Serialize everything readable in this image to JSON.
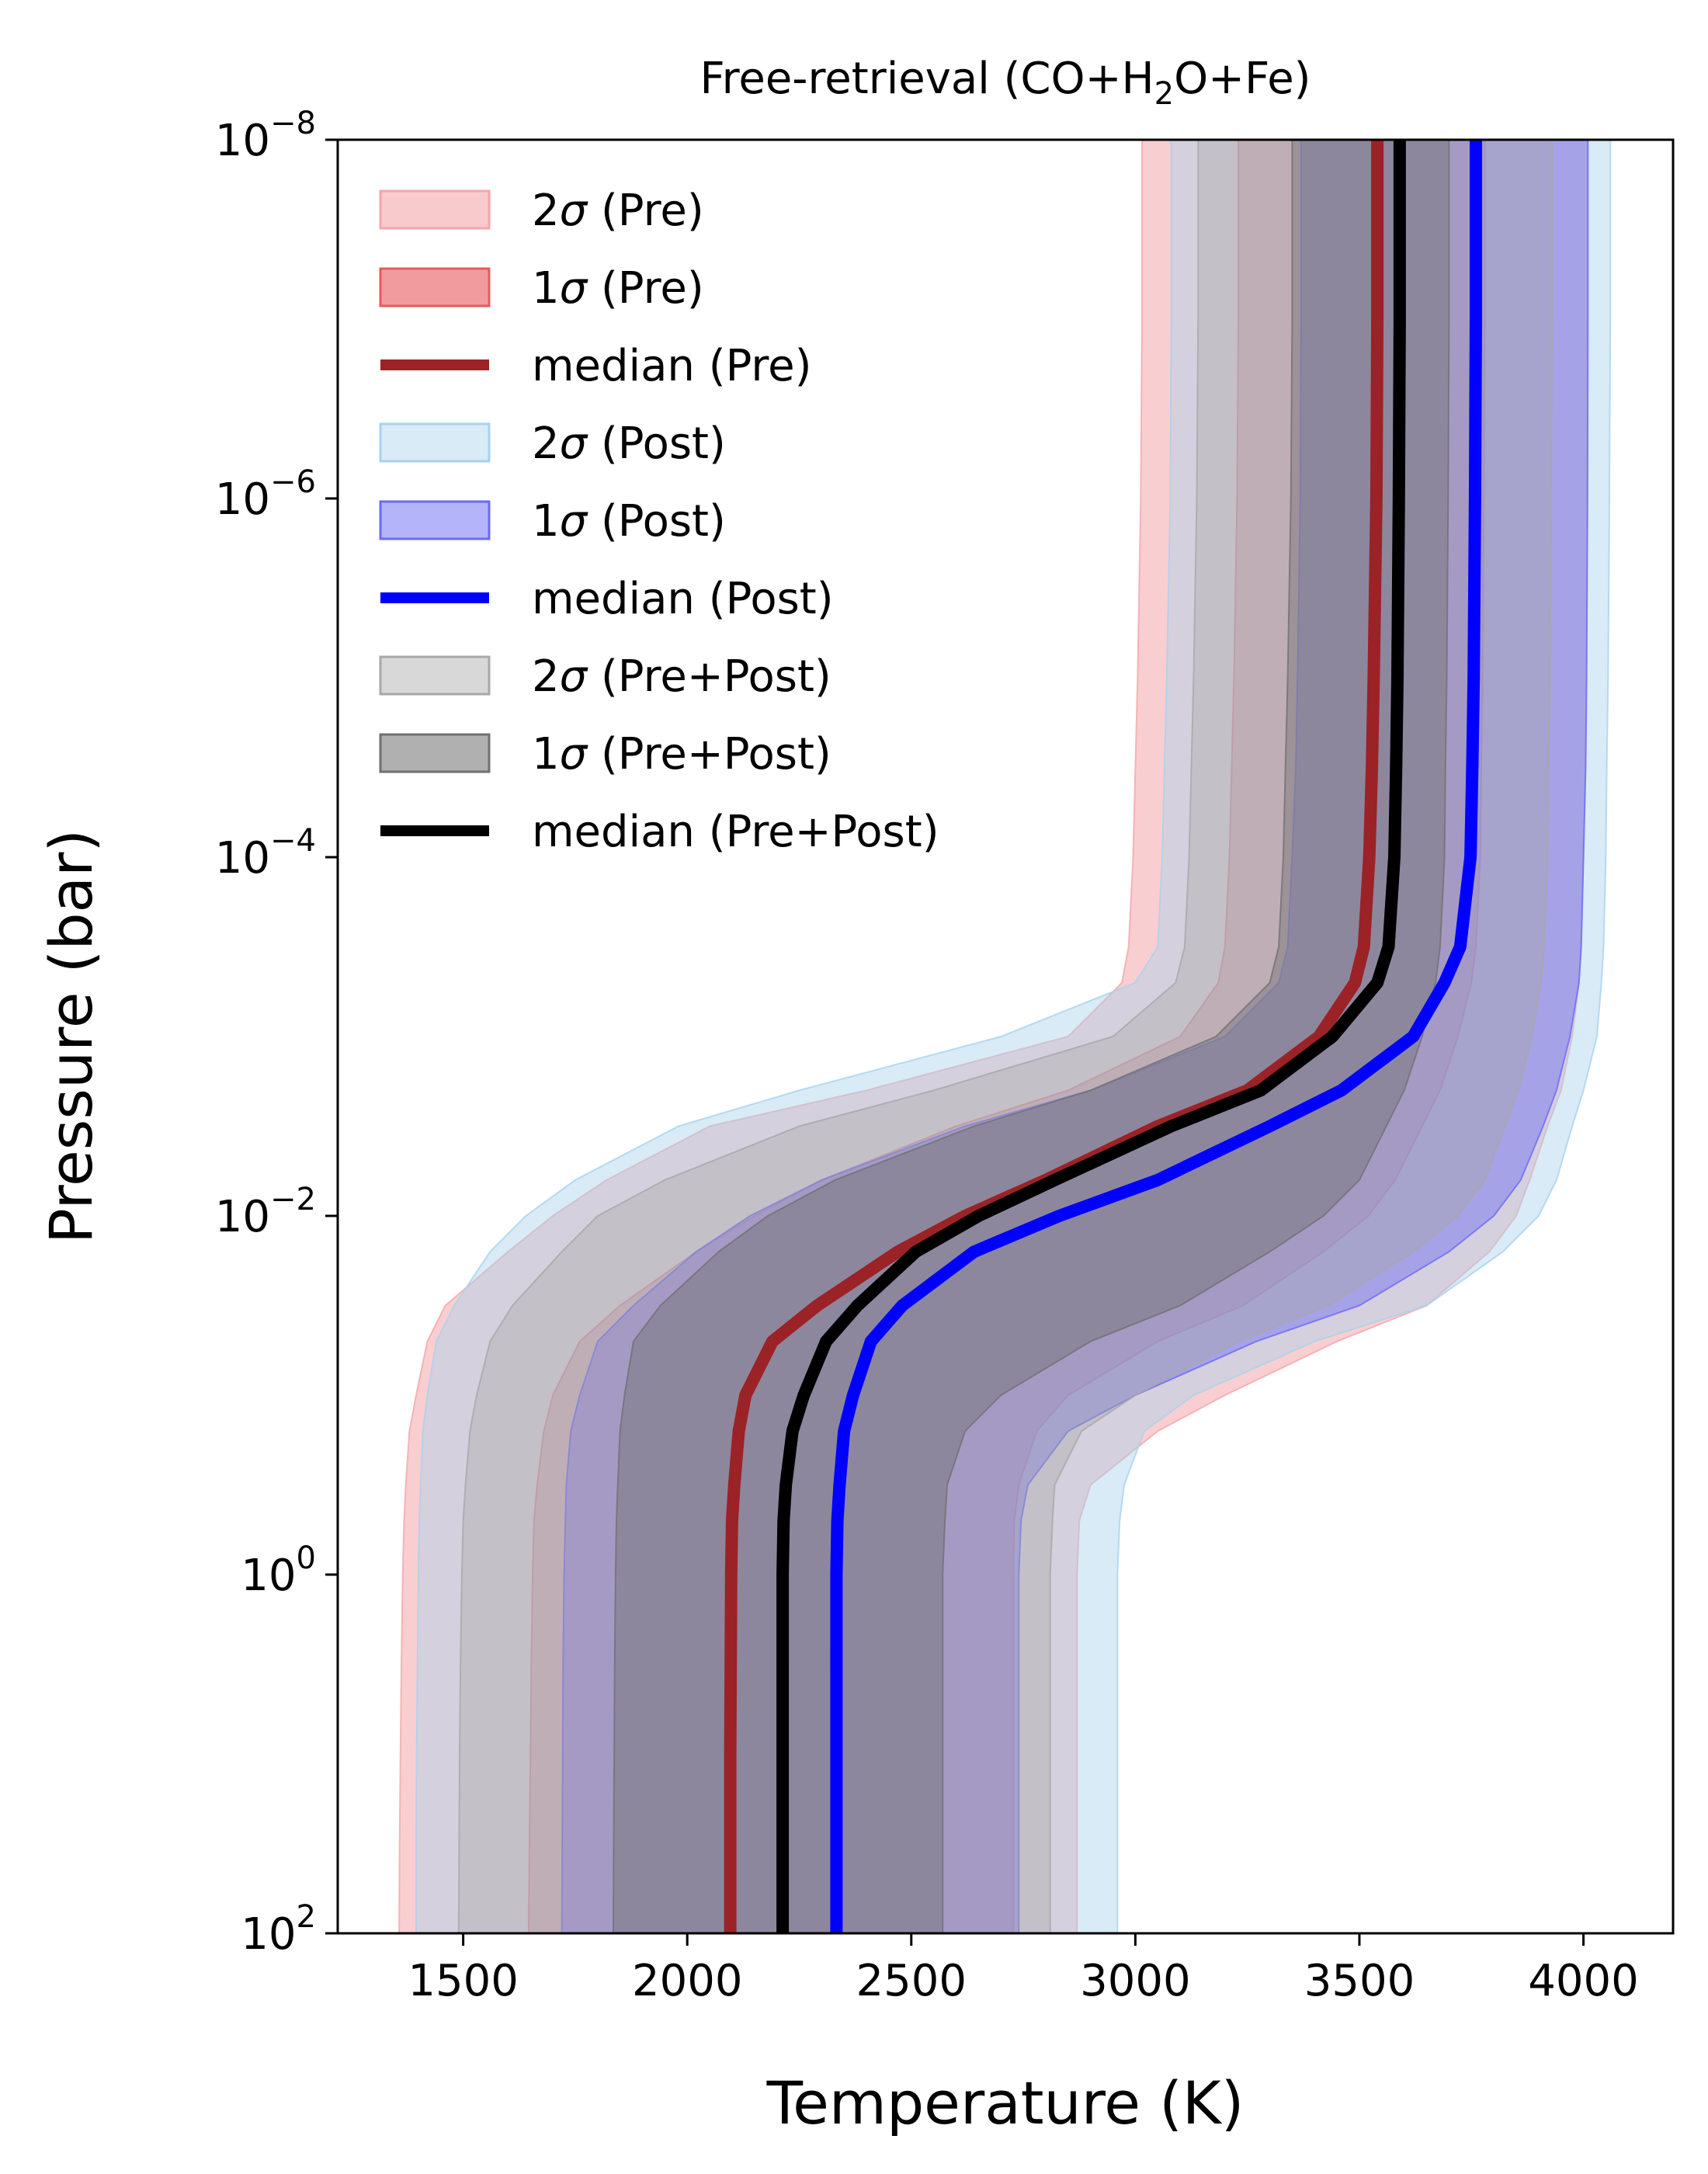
{
  "chart_data": {
    "type": "area",
    "title_parts": [
      "Free-retrieval (CO+H",
      "2",
      "O+Fe)"
    ],
    "xlabel": "Temperature (K)",
    "ylabel": "Pressure (bar)",
    "xlim": [
      1220,
      4200
    ],
    "ylim_log10": [
      -8,
      2
    ],
    "y_inverted": true,
    "y_scale": "log",
    "x_ticks": [
      1500,
      2000,
      2500,
      3000,
      3500,
      4000
    ],
    "x_tick_labels": [
      "1500",
      "2000",
      "2500",
      "3000",
      "3500",
      "4000"
    ],
    "y_ticks_log10": [
      -8,
      -6,
      -4,
      -2,
      0,
      2
    ],
    "y_tick_bases": [
      "10",
      "10",
      "10",
      "10",
      "10",
      "10"
    ],
    "y_tick_exponents": [
      "−8",
      "−6",
      "−4",
      "−2",
      "0",
      "2"
    ],
    "legend_location": "upper-left",
    "legend": [
      {
        "label_prefix": "2",
        "label_suffix": " (Pre)",
        "kind": "band",
        "color": "#f4a6aa",
        "opacity": 0.6
      },
      {
        "label_prefix": "1",
        "label_suffix": " (Pre)",
        "kind": "band",
        "color": "#e8595f",
        "opacity": 0.6
      },
      {
        "label_prefix": "",
        "label_suffix": "median (Pre)",
        "kind": "line",
        "color": "#9b2226"
      },
      {
        "label_prefix": "2",
        "label_suffix": " (Post)",
        "kind": "band",
        "color": "#a8d2ee",
        "opacity": 0.45
      },
      {
        "label_prefix": "1",
        "label_suffix": " (Post)",
        "kind": "band",
        "color": "#6a6af5",
        "opacity": 0.5
      },
      {
        "label_prefix": "",
        "label_suffix": "median (Post)",
        "kind": "line",
        "color": "#0000ff"
      },
      {
        "label_prefix": "2",
        "label_suffix": " (Pre+Post)",
        "kind": "band",
        "color": "#a8a8a8",
        "opacity": 0.45
      },
      {
        "label_prefix": "1",
        "label_suffix": " (Pre+Post)",
        "kind": "band",
        "color": "#707070",
        "opacity": 0.55
      },
      {
        "label_prefix": "",
        "label_suffix": "median (Pre+Post)",
        "kind": "line",
        "color": "#000000"
      }
    ],
    "sigma_symbol": "σ",
    "logP": [
      -8,
      -7,
      -6,
      -5,
      -4.5,
      -4,
      -3.5,
      -3.3,
      -3,
      -2.7,
      -2.5,
      -2.2,
      -2,
      -1.8,
      -1.5,
      -1.3,
      -1,
      -0.8,
      -0.5,
      -0.3,
      0,
      0.5,
      1,
      1.5,
      2
    ],
    "series": [
      {
        "name": "2σ (Pre)",
        "kind": "band",
        "color": "#f4a6aa",
        "opacity": 0.55,
        "low": [
          3015,
          3015,
          3012,
          3005,
          3000,
          2995,
          2985,
          2970,
          2850,
          2400,
          2050,
          1820,
          1700,
          1600,
          1460,
          1420,
          1395,
          1380,
          1372,
          1368,
          1365,
          1362,
          1360,
          1358,
          1357
        ],
        "high": [
          4010,
          4010,
          4009,
          4007,
          4005,
          4000,
          3995,
          3990,
          3975,
          3950,
          3920,
          3880,
          3850,
          3790,
          3650,
          3450,
          3200,
          3050,
          2900,
          2875,
          2870,
          2870,
          2870,
          2870,
          2870
        ]
      },
      {
        "name": "1σ (Pre)",
        "kind": "band",
        "color": "#e8595f",
        "opacity": 0.45,
        "low": [
          3230,
          3230,
          3227,
          3220,
          3215,
          3210,
          3200,
          3185,
          3100,
          2850,
          2600,
          2300,
          2150,
          2020,
          1850,
          1760,
          1700,
          1680,
          1665,
          1658,
          1655,
          1652,
          1650,
          1648,
          1646
        ],
        "high": [
          3780,
          3780,
          3778,
          3775,
          3772,
          3770,
          3760,
          3750,
          3720,
          3680,
          3640,
          3580,
          3520,
          3420,
          3240,
          3050,
          2850,
          2780,
          2740,
          2730,
          2728,
          2728,
          2728,
          2728,
          2728
        ]
      },
      {
        "name": "2σ (Post)",
        "kind": "band",
        "color": "#a8d2ee",
        "opacity": 0.45,
        "low": [
          3080,
          3080,
          3078,
          3070,
          3065,
          3060,
          3050,
          3000,
          2700,
          2250,
          1980,
          1750,
          1640,
          1560,
          1480,
          1440,
          1420,
          1410,
          1405,
          1402,
          1400,
          1398,
          1396,
          1395,
          1395
        ],
        "high": [
          4060,
          4060,
          4058,
          4055,
          4052,
          4050,
          4045,
          4040,
          4030,
          4000,
          3975,
          3940,
          3900,
          3820,
          3650,
          3400,
          3130,
          3020,
          2975,
          2965,
          2960,
          2960,
          2960,
          2960,
          2960
        ]
      },
      {
        "name": "1σ (Post)",
        "kind": "band",
        "color": "#6a6af5",
        "opacity": 0.45,
        "low": [
          3370,
          3370,
          3368,
          3362,
          3358,
          3350,
          3340,
          3320,
          3200,
          2900,
          2620,
          2300,
          2140,
          2020,
          1880,
          1800,
          1760,
          1740,
          1730,
          1728,
          1725,
          1723,
          1722,
          1721,
          1720
        ],
        "high": [
          4010,
          4010,
          4009,
          4007,
          4005,
          4000,
          3995,
          3990,
          3970,
          3940,
          3910,
          3860,
          3800,
          3700,
          3500,
          3270,
          3000,
          2850,
          2760,
          2745,
          2740,
          2740,
          2740,
          2740,
          2740
        ]
      },
      {
        "name": "2σ (Pre+Post)",
        "kind": "band",
        "color": "#a8a8a8",
        "opacity": 0.4,
        "low": [
          3140,
          3140,
          3137,
          3130,
          3125,
          3120,
          3110,
          3090,
          2950,
          2550,
          2250,
          1950,
          1800,
          1720,
          1610,
          1560,
          1530,
          1515,
          1505,
          1500,
          1497,
          1494,
          1492,
          1491,
          1490
        ],
        "high": [
          3930,
          3930,
          3928,
          3925,
          3922,
          3920,
          3912,
          3905,
          3885,
          3855,
          3825,
          3780,
          3720,
          3620,
          3430,
          3230,
          3000,
          2880,
          2820,
          2815,
          2810,
          2810,
          2810,
          2810,
          2810
        ]
      },
      {
        "name": "1σ (Pre+Post)",
        "kind": "band",
        "color": "#707070",
        "opacity": 0.45,
        "low": [
          3350,
          3350,
          3347,
          3340,
          3335,
          3330,
          3320,
          3300,
          3180,
          2900,
          2640,
          2330,
          2180,
          2070,
          1940,
          1880,
          1860,
          1850,
          1845,
          1842,
          1840,
          1838,
          1837,
          1836,
          1835
        ],
        "high": [
          3700,
          3700,
          3698,
          3695,
          3692,
          3690,
          3680,
          3670,
          3640,
          3600,
          3560,
          3500,
          3420,
          3300,
          3100,
          2900,
          2700,
          2620,
          2580,
          2575,
          2570,
          2570,
          2570,
          2570,
          2570
        ]
      },
      {
        "name": "median (Pre)",
        "kind": "line",
        "color": "#9b2226",
        "width": 16,
        "values": [
          3540,
          3540,
          3538,
          3532,
          3528,
          3522,
          3510,
          3490,
          3410,
          3250,
          3050,
          2800,
          2620,
          2470,
          2290,
          2190,
          2130,
          2115,
          2105,
          2100,
          2098,
          2097,
          2096,
          2096,
          2096
        ]
      },
      {
        "name": "median (Post)",
        "kind": "line",
        "color": "#0000ff",
        "width": 16,
        "values": [
          3760,
          3760,
          3758,
          3755,
          3752,
          3748,
          3725,
          3690,
          3620,
          3460,
          3300,
          3050,
          2830,
          2640,
          2480,
          2410,
          2370,
          2350,
          2340,
          2335,
          2333,
          2333,
          2333,
          2333,
          2333
        ]
      },
      {
        "name": "median (Pre+Post)",
        "kind": "line",
        "color": "#000000",
        "width": 16,
        "values": [
          3590,
          3590,
          3588,
          3585,
          3582,
          3578,
          3565,
          3540,
          3440,
          3280,
          3080,
          2820,
          2650,
          2510,
          2380,
          2310,
          2260,
          2235,
          2220,
          2215,
          2213,
          2213,
          2213,
          2213,
          2213
        ]
      }
    ]
  }
}
